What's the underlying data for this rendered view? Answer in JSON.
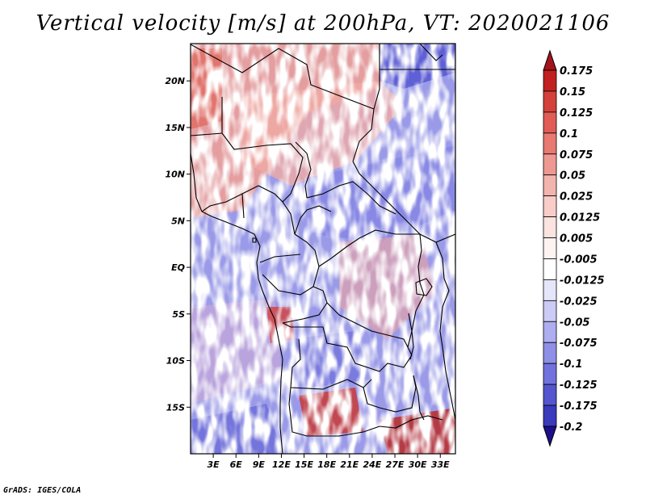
{
  "title": "Vertical velocity [m/s] at 200hPa, VT: 2020021106",
  "credit": "GrADS: IGES/COLA",
  "map": {
    "variable": "Vertical velocity",
    "units": "m/s",
    "level": "200hPa",
    "valid_time": "2020021106",
    "lon_range": [
      0,
      35
    ],
    "lat_range": [
      -20,
      24
    ],
    "lat_ticks": [
      {
        "value": 20,
        "label": "20N"
      },
      {
        "value": 15,
        "label": "15N"
      },
      {
        "value": 10,
        "label": "10N"
      },
      {
        "value": 5,
        "label": "5N"
      },
      {
        "value": 0,
        "label": "EQ"
      },
      {
        "value": -5,
        "label": "5S"
      },
      {
        "value": -10,
        "label": "10S"
      },
      {
        "value": -15,
        "label": "15S"
      }
    ],
    "lon_ticks": [
      {
        "value": 3,
        "label": "3E"
      },
      {
        "value": 6,
        "label": "6E"
      },
      {
        "value": 9,
        "label": "9E"
      },
      {
        "value": 12,
        "label": "12E"
      },
      {
        "value": 15,
        "label": "15E"
      },
      {
        "value": 18,
        "label": "18E"
      },
      {
        "value": 21,
        "label": "21E"
      },
      {
        "value": 24,
        "label": "24E"
      },
      {
        "value": 27,
        "label": "27E"
      },
      {
        "value": 30,
        "label": "30E"
      },
      {
        "value": 33,
        "label": "33E"
      }
    ]
  },
  "colorbar": {
    "levels": [
      {
        "label": "0.175",
        "color": "#c0201e"
      },
      {
        "label": "0.15",
        "color": "#d4403a"
      },
      {
        "label": "0.125",
        "color": "#e05c55"
      },
      {
        "label": "0.1",
        "color": "#e87a72"
      },
      {
        "label": "0.075",
        "color": "#ef9892"
      },
      {
        "label": "0.05",
        "color": "#f4b4ae"
      },
      {
        "label": "0.025",
        "color": "#f8cdc8"
      },
      {
        "label": "0.0125",
        "color": "#fbe3df"
      },
      {
        "label": "0.005",
        "color": "#fdf3f1"
      },
      {
        "label": "-0.005",
        "color": "#ffffff"
      },
      {
        "label": "-0.0125",
        "color": "#e6e6fb"
      },
      {
        "label": "-0.025",
        "color": "#cbcbf6"
      },
      {
        "label": "-0.05",
        "color": "#adadf0"
      },
      {
        "label": "-0.075",
        "color": "#8f8fe8"
      },
      {
        "label": "-0.1",
        "color": "#7272de"
      },
      {
        "label": "-0.125",
        "color": "#5555d0"
      },
      {
        "label": "-0.175",
        "color": "#3a3abd"
      },
      {
        "label": "-0.2",
        "color": "#2a22a4"
      }
    ],
    "top_arrow_color": "#a5141a",
    "bottom_arrow_color": "#1d0f8c"
  }
}
